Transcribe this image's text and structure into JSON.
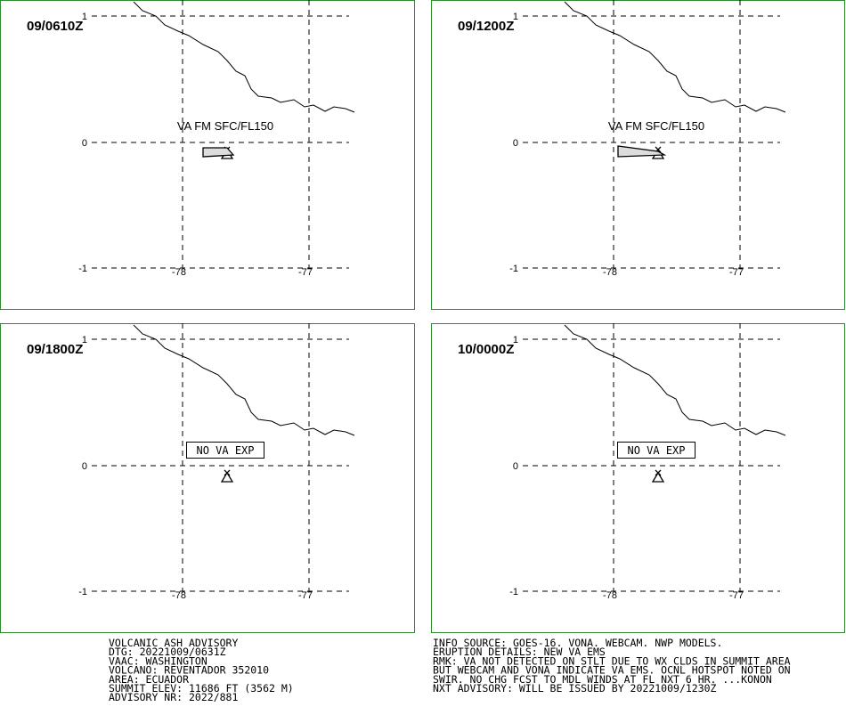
{
  "panels": [
    {
      "time": "09/0610Z",
      "annotation": "VA FM SFC/FL150",
      "lat_labels": [
        "1",
        "0",
        "-1"
      ],
      "lon_labels": [
        "-78",
        "-77"
      ]
    },
    {
      "time": "09/1200Z",
      "annotation": "VA FM SFC/FL150",
      "lat_labels": [
        "1",
        "0",
        "-1"
      ],
      "lon_labels": [
        "-78",
        "-77"
      ]
    },
    {
      "time": "09/1800Z",
      "annotation": "NO VA EXP",
      "lat_labels": [
        "1",
        "0",
        "-1"
      ],
      "lon_labels": [
        "-78",
        "-77"
      ]
    },
    {
      "time": "10/0000Z",
      "annotation": "NO VA EXP",
      "lat_labels": [
        "1",
        "0",
        "-1"
      ],
      "lon_labels": [
        "-78",
        "-77"
      ]
    }
  ],
  "advisory": {
    "left": [
      "VOLCANIC ASH ADVISORY",
      "DTG: 20221009/0631Z",
      "VAAC: WASHINGTON",
      "VOLCANO: REVENTADOR 352010",
      "AREA: ECUADOR",
      "SUMMIT ELEV: 11686 FT (3562 M)",
      "ADVISORY NR: 2022/881"
    ],
    "right": [
      "INFO SOURCE: GOES-16. VONA. WEBCAM. NWP MODELS.",
      "ERUPTION DETAILS: NEW VA EMS",
      "RMK: VA NOT DETECTED ON STLT DUE TO WX CLDS IN SUMMIT AREA",
      "BUT WEBCAM AND VONA INDICATE VA EMS. OCNL HOTSPOT NOTED ON",
      "SWIR. NO CHG FCST TO MDL WINDS AT FL NXT 6 HR. ...KONON",
      "NXT ADVISORY: WILL BE ISSUED BY 20221009/1230Z"
    ]
  }
}
